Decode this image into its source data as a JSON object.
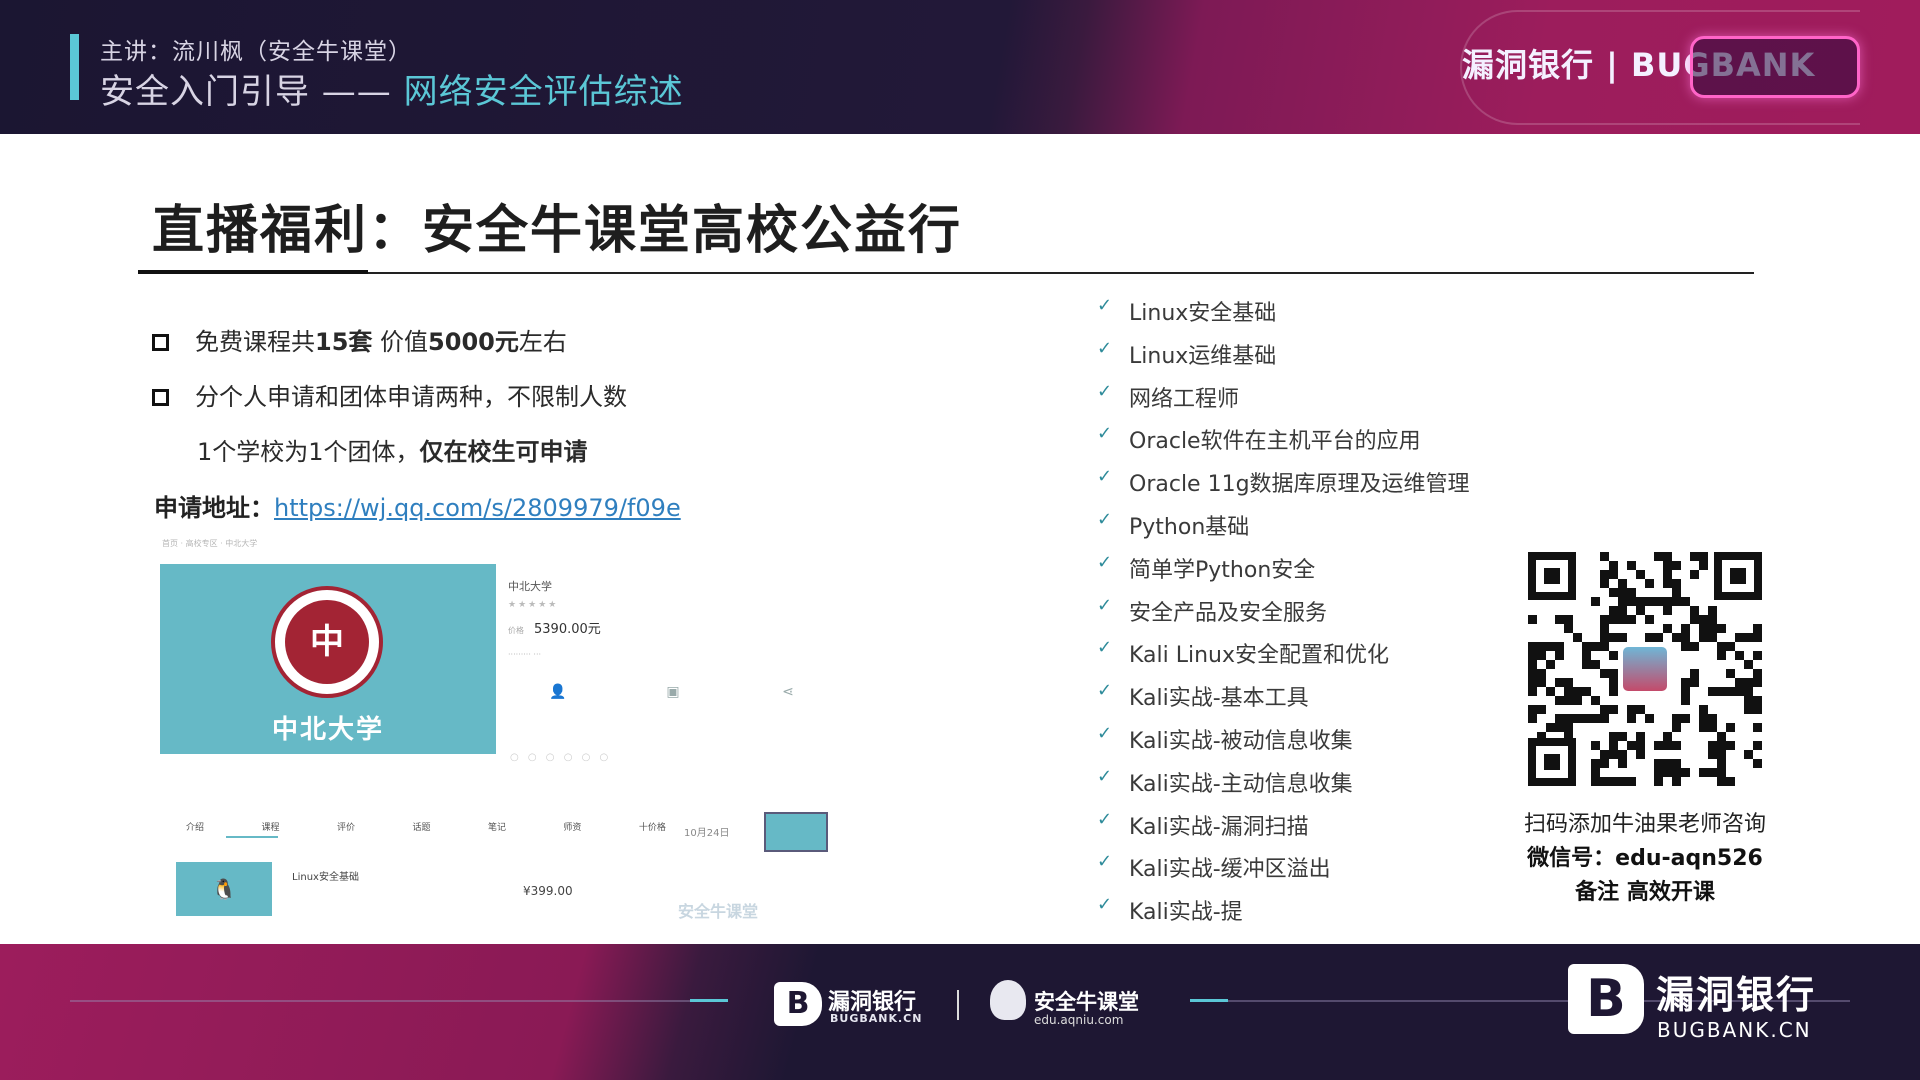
{
  "header": {
    "speaker": "主讲：流川枫（安全牛课堂）",
    "title_prefix": "安全入门引导 —— ",
    "title_highlight": "网络安全评估综述",
    "brand": "漏洞银行 | BUGBANK"
  },
  "slide": {
    "title": "直播福利：安全牛课堂高校公益行",
    "bullets": [
      {
        "pre": "免费课程共",
        "bold1": "15套",
        "mid": " 价值",
        "bold2": "5000元",
        "post": "左右"
      },
      {
        "text": "分个人申请和团体申请两种，不限制人数"
      }
    ],
    "sub_note_pre": "1个学校为1个团体，",
    "sub_note_bold": "仅在校生可申请",
    "apply_label": "申请地址：",
    "apply_url": "https://wj.qq.com/s/2809979/f09e"
  },
  "embed": {
    "university_name": "中北大学",
    "seal_char": "中",
    "info_name": "中北大学",
    "price": "5390.00元",
    "tabs": [
      "介绍",
      "课程",
      "评价",
      "话题",
      "笔记",
      "师资",
      "十价格"
    ],
    "date": "10月24日",
    "course_name": "Linux安全基础",
    "course_price": "¥399.00",
    "watermark": "安全牛课堂"
  },
  "courses": [
    "Linux安全基础",
    "Linux运维基础",
    "网络工程师",
    "Oracle软件在主机平台的应用",
    "Oracle 11g数据库原理及运维管理",
    "Python基础",
    "简单学Python安全",
    "安全产品及安全服务",
    "Kali Linux安全配置和优化",
    "Kali实战-基本工具",
    "Kali实战-被动信息收集",
    "Kali实战-主动信息收集",
    "Kali实战-漏洞扫描",
    "Kali实战-缓冲区溢出",
    "Kali实战-提"
  ],
  "qr": {
    "caption1": "扫码添加牛油果老师咨询",
    "caption2": "微信号：edu-aqn526",
    "caption3": "备注 高效开课"
  },
  "footer": {
    "brand_small": "漏洞银行",
    "brand_small_en": "BUGBANK.CN",
    "aqniu_name": "安全牛课堂",
    "aqniu_url": "edu.aqniu.com",
    "brand_big": "漏洞银行",
    "brand_big_en": "BUGBANK.CN"
  },
  "colors": {
    "accent": "#5bc7d6",
    "magenta": "#9c1d5c",
    "dark": "#1e1733"
  }
}
